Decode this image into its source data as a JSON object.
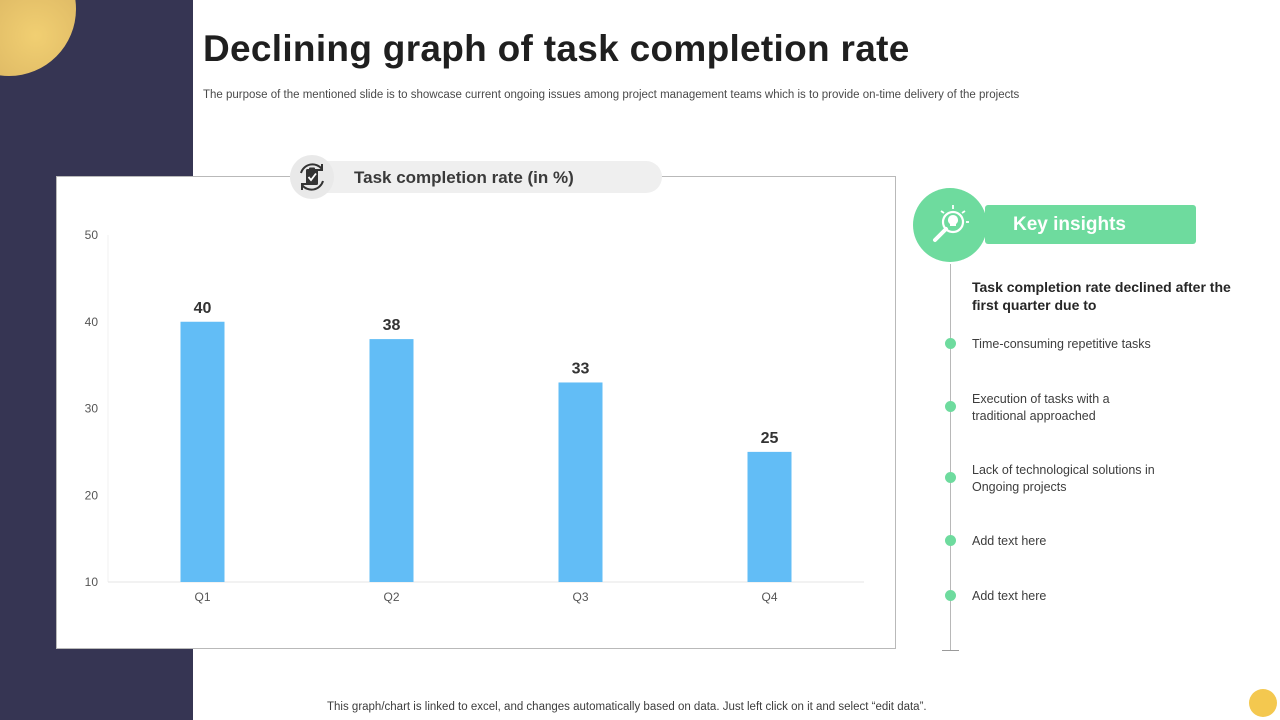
{
  "slide": {
    "title": "Declining graph of task completion rate",
    "subtitle": "The purpose of the mentioned slide is to showcase current ongoing issues among project management teams which is to provide on-time delivery of the projects",
    "footer_note": "This graph/chart is linked to excel,  and changes automatically based on data. Just left click on it and select “edit data”."
  },
  "chart_header": {
    "label": "Task completion rate (in %)",
    "icon": "refresh-clipboard-icon"
  },
  "chart_data": {
    "type": "bar",
    "title": "Task completion rate (in %)",
    "categories": [
      "Q1",
      "Q2",
      "Q3",
      "Q4"
    ],
    "values": [
      40,
      38,
      33,
      25
    ],
    "ylim": [
      10,
      50
    ],
    "yticks": [
      10,
      20,
      30,
      40,
      50
    ],
    "xlabel": "",
    "ylabel": "",
    "grid": false,
    "data_labels": true,
    "bar_color": "#62bdf6"
  },
  "insights": {
    "title": "Key insights",
    "icon": "lightbulb-magnifier-icon",
    "heading": "Task completion rate declined after the first quarter due to",
    "items": [
      "Time-consuming  repetitive  tasks",
      "Execution of tasks with a\ntraditional approached",
      "Lack of technological solutions in\nOngoing  projects",
      "Add text here",
      "Add text here"
    ]
  },
  "colors": {
    "sidebar": "#363553",
    "accent_green": "#6edb9e",
    "accent_yellow": "#f4c84f",
    "bar_blue": "#62bdf6"
  }
}
